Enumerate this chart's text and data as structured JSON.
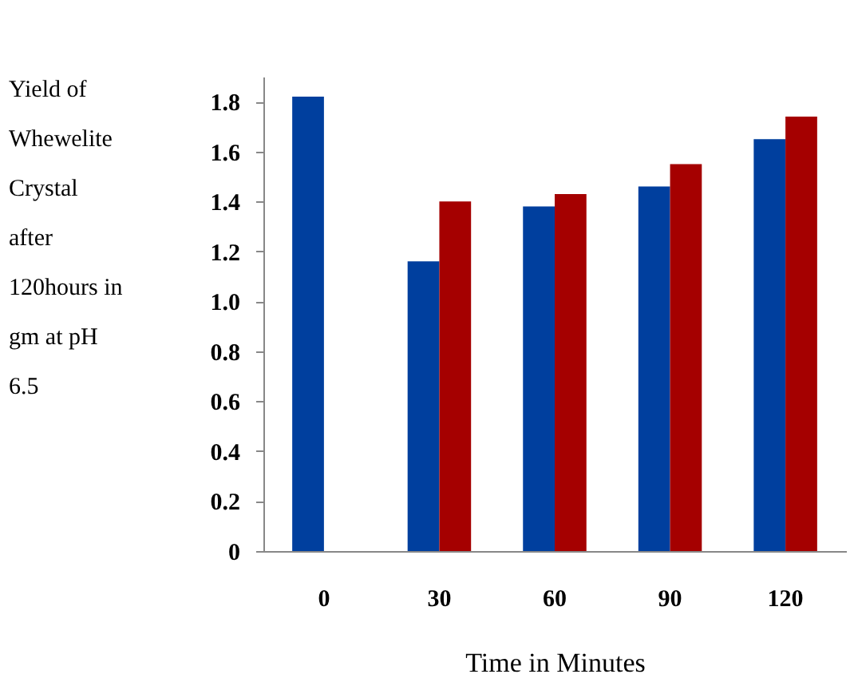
{
  "chart_data": {
    "type": "bar",
    "xlabel": "Time in Minutes",
    "ylabel": "Yield of Whewelite Crystal after 120hours in gm at pH 6.5",
    "categories": [
      "0",
      "30",
      "60",
      "90",
      "120"
    ],
    "series": [
      {
        "color": "#003f9e",
        "values": [
          1.82,
          1.16,
          1.38,
          1.46,
          1.65
        ]
      },
      {
        "color": "#a50000",
        "values": [
          null,
          1.4,
          1.43,
          1.55,
          1.74
        ]
      }
    ],
    "ylim": [
      0,
      1.9
    ],
    "yticks": [
      0,
      0.2,
      0.4,
      0.6,
      0.8,
      {
        "value": 1,
        "label": "1.0"
      },
      1.2,
      1.4,
      1.6,
      1.8
    ],
    "grid": false,
    "legend": false
  }
}
